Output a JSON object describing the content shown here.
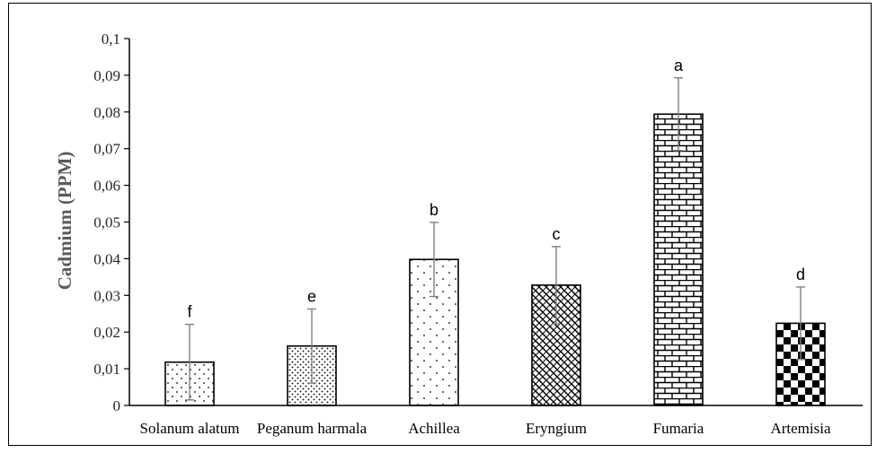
{
  "chart_data": {
    "type": "bar",
    "title": "",
    "xlabel": "",
    "ylabel": "Cadmium (PPM)",
    "ylim": [
      0,
      0.1
    ],
    "yticks": [
      "0",
      "0,01",
      "0,02",
      "0,03",
      "0,04",
      "0,05",
      "0,06",
      "0,07",
      "0,08",
      "0,09",
      "0,1"
    ],
    "categories": [
      "Solanum alatum",
      "Peganum harmala",
      "Achillea",
      "Eryngium",
      "Fumaria",
      "Artemisia"
    ],
    "values": [
      0.0118,
      0.0162,
      0.0398,
      0.0328,
      0.0794,
      0.0224
    ],
    "errors": [
      0.0103,
      0.0101,
      0.0101,
      0.0105,
      0.0099,
      0.0099
    ],
    "significance_labels": [
      "f",
      "e",
      "b",
      "c",
      "a",
      "d"
    ],
    "patterns": [
      "sparse-dots",
      "dense-dots",
      "scattered-dots",
      "diagonal-weave",
      "brick",
      "checkerboard"
    ],
    "grid": false,
    "legend": "none",
    "colors": {
      "bar_stroke": "#000000",
      "bar_fill": "#000000",
      "error_bar": "#7f7f7f",
      "axis": "#000000"
    }
  }
}
